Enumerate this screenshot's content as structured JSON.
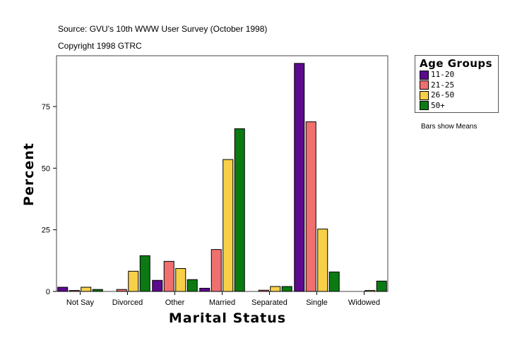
{
  "header": {
    "source": "Source: GVU's 10th WWW User Survey (October 1998)",
    "copyright": "Copyright 1998 GTRC"
  },
  "note": "Bars show Means",
  "chart_data": {
    "type": "bar",
    "xlabel": "Marital Status",
    "ylabel": "Percent",
    "ylim": [
      0,
      95.6
    ],
    "yticks": [
      0,
      25,
      50,
      75
    ],
    "grid": false,
    "legend_title": "Age Groups",
    "legend_position": "right",
    "categories": [
      "Not Say",
      "Divorced",
      "Other",
      "Married",
      "Separated",
      "Single",
      "Widowed"
    ],
    "series": [
      {
        "name": "11-20",
        "color": "#5c0a8e",
        "values": [
          1.7,
          0,
          4.5,
          1.3,
          0,
          92.5,
          0
        ]
      },
      {
        "name": "21-25",
        "color": "#f07070",
        "values": [
          0.4,
          0.8,
          12.2,
          17.0,
          0.5,
          68.8,
          0
        ]
      },
      {
        "name": "26-50",
        "color": "#f7d048",
        "values": [
          1.7,
          8.2,
          9.3,
          53.5,
          2.0,
          25.3,
          0.4
        ]
      },
      {
        "name": "50+",
        "color": "#0b7a12",
        "values": [
          0.8,
          14.5,
          4.8,
          66.0,
          2.0,
          7.9,
          4.2
        ]
      }
    ]
  }
}
